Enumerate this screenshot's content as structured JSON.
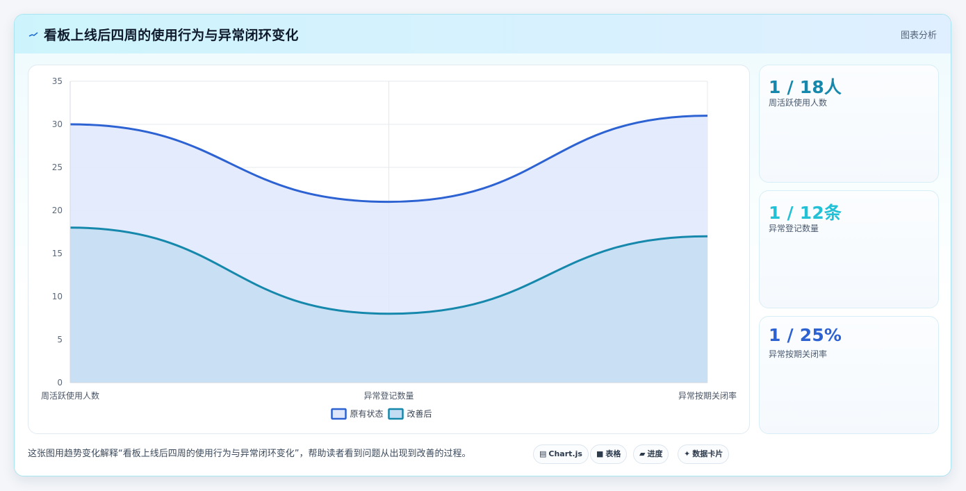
{
  "header": {
    "title": "看板上线后四周的使用行为与异常闭环变化",
    "right_label": "图表分析",
    "icon": "pulse-line-icon"
  },
  "chart_data": {
    "type": "area",
    "categories": [
      "周活跃使用人数",
      "异常登记数量",
      "异常按期关闭率"
    ],
    "series": [
      {
        "name": "原有状态",
        "values": [
          30,
          21,
          31
        ],
        "color": "#2d62d3",
        "fill": "#dfe8fb"
      },
      {
        "name": "改善后",
        "values": [
          18,
          8,
          17
        ],
        "color": "#1688ac",
        "fill": "#c4ddf2"
      }
    ],
    "ylim": [
      0,
      35
    ],
    "yticks": [
      0,
      5,
      10,
      15,
      20,
      25,
      30,
      35
    ],
    "grid": true,
    "legend": "bottom"
  },
  "stats": [
    {
      "value": "1 / 18人",
      "label": "周活跃使用人数",
      "color": "#1688ac"
    },
    {
      "value": "1 / 12条",
      "label": "异常登记数量",
      "color": "#22c1d6"
    },
    {
      "value": "1 / 25%",
      "label": "异常按期关闭率",
      "color": "#2d62d3"
    }
  ],
  "footer": {
    "description": "这张图用趋势变化解释“看板上线后四周的使用行为与异常闭环变化”，帮助读者看到问题从出现到改善的过程。"
  },
  "tags": [
    {
      "icon": "chart-icon",
      "glyph": "▤",
      "label": "Chart.js"
    },
    {
      "icon": "table-icon",
      "glyph": "■",
      "label": "表格"
    },
    {
      "icon": "progress-icon",
      "glyph": "▰",
      "label": "进度"
    },
    {
      "icon": "sparkle-icon",
      "glyph": "✦",
      "label": "数据卡片"
    }
  ]
}
